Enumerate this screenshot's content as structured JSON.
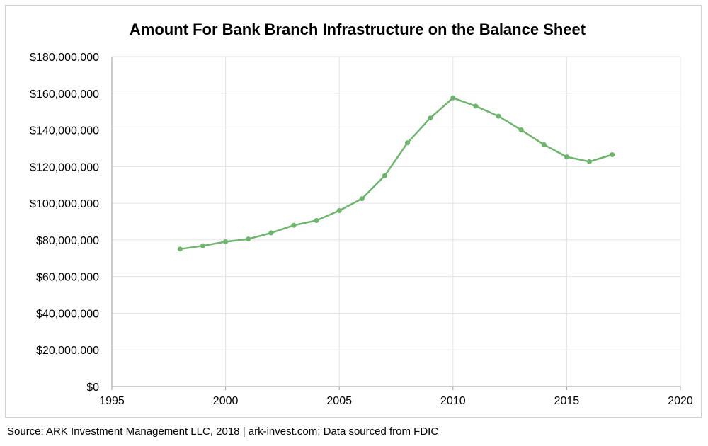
{
  "chart_data": {
    "type": "line",
    "title": "Amount For Bank Branch Infrastructure on the Balance Sheet",
    "xlabel": "",
    "ylabel": "",
    "xlim": [
      1995,
      2020
    ],
    "ylim": [
      0,
      180000000
    ],
    "x_ticks": [
      1995,
      2000,
      2005,
      2010,
      2015,
      2020
    ],
    "x_tick_labels": [
      "1995",
      "2000",
      "2005",
      "2010",
      "2015",
      "2020"
    ],
    "y_ticks": [
      0,
      20000000,
      40000000,
      60000000,
      80000000,
      100000000,
      120000000,
      140000000,
      160000000,
      180000000
    ],
    "y_tick_labels": [
      "$0",
      "$20,000,000",
      "$40,000,000",
      "$60,000,000",
      "$80,000,000",
      "$100,000,000",
      "$120,000,000",
      "$140,000,000",
      "$160,000,000",
      "$180,000,000"
    ],
    "grid": true,
    "legend": "none",
    "series": [
      {
        "color": "#6db56d",
        "x": [
          1998,
          1999,
          2000,
          2001,
          2002,
          2003,
          2004,
          2005,
          2006,
          2007,
          2008,
          2009,
          2010,
          2011,
          2012,
          2013,
          2014,
          2015,
          2016,
          2017
        ],
        "values": [
          75000000,
          76800000,
          79000000,
          80500000,
          83800000,
          88000000,
          90600000,
          96000000,
          102500000,
          115000000,
          133000000,
          146500000,
          157500000,
          153000000,
          147500000,
          140000000,
          132000000,
          125300000,
          122700000,
          126500000
        ]
      }
    ]
  },
  "source": "Source: ARK Investment Management LLC, 2018  |  ark-invest.com; Data sourced from FDIC"
}
